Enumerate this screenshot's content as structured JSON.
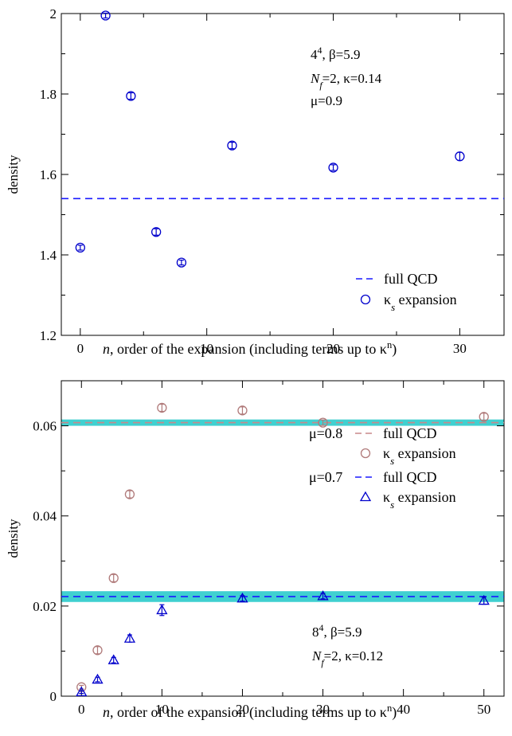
{
  "chart_data": [
    {
      "type": "scatter",
      "xlabel": "n, order of the expansion (including terms up to κⁿ)",
      "ylabel": "density",
      "xlim": [
        -1.5,
        33.5
      ],
      "ylim": [
        1.2,
        2.0
      ],
      "xticks": [
        "0",
        "10",
        "20",
        "30"
      ],
      "yticks": [
        "1.2",
        "1.4",
        "1.6",
        "1.8",
        "2"
      ],
      "grid": false,
      "legend_position": "bottom-right",
      "annotation": [
        "4⁴, β=5.9",
        "N_f=2, κ=0.14",
        "μ=0.9"
      ],
      "series": [
        {
          "name": "full QCD",
          "style": "dashed-line",
          "color": "#1a1aff",
          "y": 1.54
        },
        {
          "name": "κs expansion",
          "style": "circle",
          "color": "#0000cc",
          "x": [
            0,
            2,
            4,
            6,
            8,
            12,
            20,
            30
          ],
          "y": [
            1.418,
            1.995,
            1.795,
            1.457,
            1.381,
            1.672,
            1.617,
            1.645
          ],
          "err": [
            0.006,
            0.006,
            0.008,
            0.008,
            0.006,
            0.008,
            0.007,
            0.01
          ]
        }
      ]
    },
    {
      "type": "scatter",
      "xlabel": "n, order of the expansion (including terms up to κⁿ)",
      "ylabel": "density",
      "xlim": [
        -2.5,
        52.5
      ],
      "ylim": [
        0,
        0.07
      ],
      "xticks": [
        "0",
        "10",
        "20",
        "30",
        "40",
        "50"
      ],
      "yticks": [
        "0",
        "0.02",
        "0.04",
        "0.06"
      ],
      "grid": false,
      "legend_position": "right",
      "annotation": [
        "8⁴, β=5.9",
        "N_f=2, κ=0.12"
      ],
      "legend_groups": [
        "μ=0.8",
        "μ=0.7"
      ],
      "series": [
        {
          "name": "full QCD",
          "group": "μ=0.8",
          "style": "dashed-line",
          "color": "#c8888a",
          "y": 0.0607,
          "band": [
            0.06,
            0.0614
          ]
        },
        {
          "name": "κs expansion",
          "group": "μ=0.8",
          "style": "circle",
          "color": "#b07a7a",
          "x": [
            0,
            2,
            4,
            6,
            10,
            20,
            30,
            50
          ],
          "y": [
            0.002,
            0.0102,
            0.0262,
            0.0448,
            0.064,
            0.0634,
            0.0607,
            0.062
          ],
          "err": [
            0.0004,
            0.0008,
            0.0008,
            0.0008,
            0.0008,
            0.0008,
            0.0006,
            0.0008
          ]
        },
        {
          "name": "full QCD",
          "group": "μ=0.7",
          "style": "dashed-line",
          "color": "#1a1aff",
          "y": 0.0221,
          "band": [
            0.0209,
            0.0233
          ]
        },
        {
          "name": "κs expansion",
          "group": "μ=0.7",
          "style": "triangle",
          "color": "#0000cc",
          "x": [
            0,
            2,
            4,
            6,
            10,
            20,
            30,
            50
          ],
          "y": [
            0.0009,
            0.0037,
            0.008,
            0.0128,
            0.0191,
            0.0217,
            0.0222,
            0.0212
          ],
          "err": [
            0.0003,
            0.0005,
            0.0006,
            0.0008,
            0.0012,
            0.0006,
            0.0006,
            0.0008
          ]
        }
      ]
    }
  ],
  "colors": {
    "band": "#40d0d0",
    "axis": "#000000"
  }
}
